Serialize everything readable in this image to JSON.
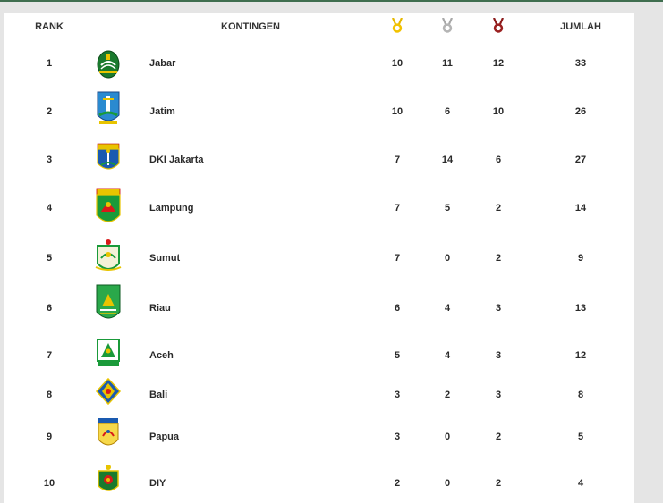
{
  "table": {
    "headers": {
      "rank": "RANK",
      "kontingen": "KONTINGEN",
      "total": "JUMLAH"
    },
    "medal_icons": {
      "gold": {
        "icon": "gold-medal-icon",
        "color": "#e6b800"
      },
      "silver": {
        "icon": "silver-medal-icon",
        "color": "#a8a8a8"
      },
      "bronze": {
        "icon": "bronze-medal-icon",
        "color": "#8b1a1a"
      }
    },
    "rows": [
      {
        "rank": "1",
        "name": "Jabar",
        "gold": "10",
        "silver": "11",
        "bronze": "12",
        "total": "33",
        "logo": "jabar-emblem-icon"
      },
      {
        "rank": "2",
        "name": "Jatim",
        "gold": "10",
        "silver": "6",
        "bronze": "10",
        "total": "26",
        "logo": "jatim-emblem-icon"
      },
      {
        "rank": "3",
        "name": "DKI Jakarta",
        "gold": "7",
        "silver": "14",
        "bronze": "6",
        "total": "27",
        "logo": "dki-jakarta-emblem-icon"
      },
      {
        "rank": "4",
        "name": "Lampung",
        "gold": "7",
        "silver": "5",
        "bronze": "2",
        "total": "14",
        "logo": "lampung-emblem-icon"
      },
      {
        "rank": "5",
        "name": "Sumut",
        "gold": "7",
        "silver": "0",
        "bronze": "2",
        "total": "9",
        "logo": "sumut-emblem-icon"
      },
      {
        "rank": "6",
        "name": "Riau",
        "gold": "6",
        "silver": "4",
        "bronze": "3",
        "total": "13",
        "logo": "riau-emblem-icon"
      },
      {
        "rank": "7",
        "name": "Aceh",
        "gold": "5",
        "silver": "4",
        "bronze": "3",
        "total": "12",
        "logo": "aceh-emblem-icon"
      },
      {
        "rank": "8",
        "name": "Bali",
        "gold": "3",
        "silver": "2",
        "bronze": "3",
        "total": "8",
        "logo": "bali-emblem-icon"
      },
      {
        "rank": "9",
        "name": "Papua",
        "gold": "3",
        "silver": "0",
        "bronze": "2",
        "total": "5",
        "logo": "papua-emblem-icon"
      },
      {
        "rank": "10",
        "name": "DIY",
        "gold": "2",
        "silver": "0",
        "bronze": "2",
        "total": "4",
        "logo": "diy-emblem-icon"
      }
    ]
  }
}
